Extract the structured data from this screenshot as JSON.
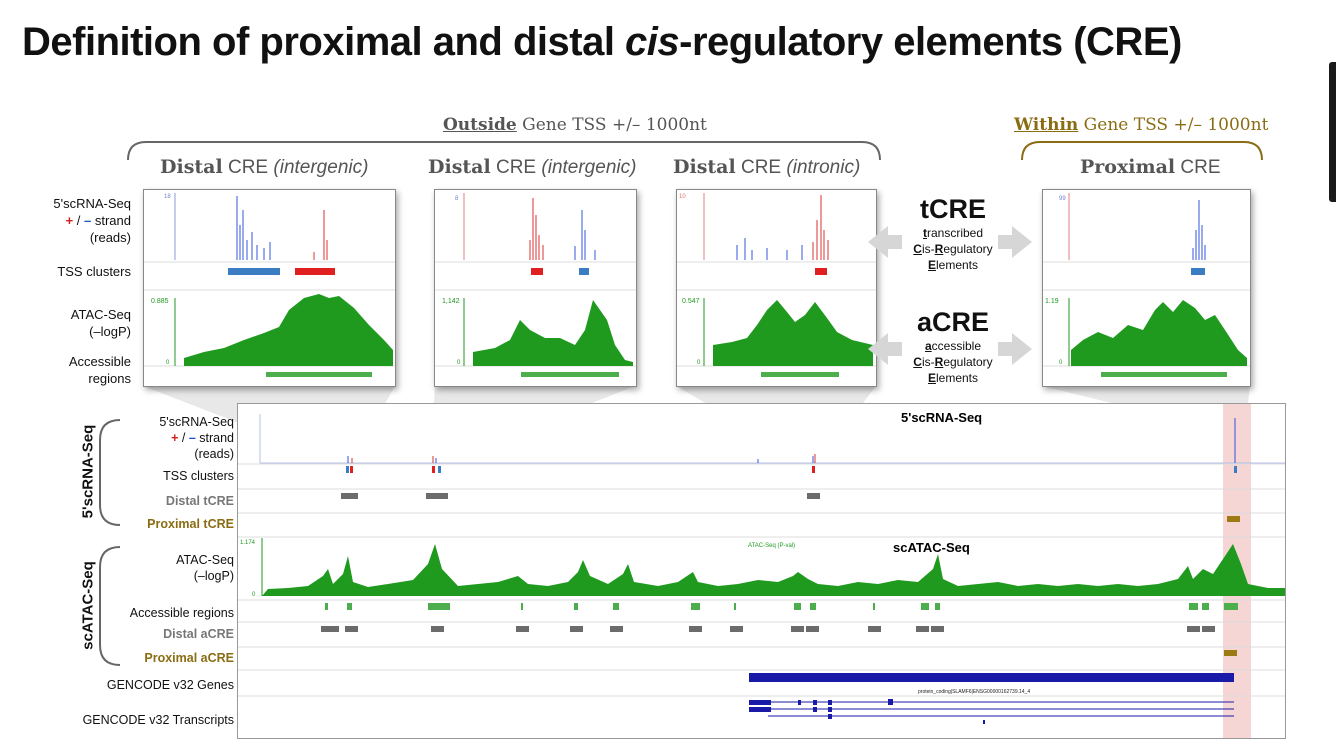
{
  "title": {
    "pre": "Definition of proximal and distal ",
    "italic": "cis",
    "post": "-regulatory elements (CRE)"
  },
  "groups": {
    "outside": {
      "emph": "Outside",
      "rest": " Gene TSS +/– 1000nt"
    },
    "within": {
      "emph": "Within",
      "rest": " Gene TSS +/– 1000nt"
    }
  },
  "cre_labels": [
    {
      "word": "Distal",
      "cre": " CRE ",
      "qual": "(intergenic)"
    },
    {
      "word": "Distal",
      "cre": " CRE ",
      "qual": "(intergenic)"
    },
    {
      "word": "Distal",
      "cre": " CRE ",
      "qual": "(intronic)"
    },
    {
      "word": "Proximal",
      "cre": " CRE",
      "qual": ""
    }
  ],
  "left_labels": {
    "rna1": "5'scRNA-Seq",
    "rna_plus": "+",
    "rna_sep": " / ",
    "rna_minus": "–",
    "rna_strand": " strand",
    "rna3": "(reads)",
    "tss": "TSS clusters",
    "atac1": "ATAC-Seq",
    "atac2": "(–logP)",
    "acc1": "Accessible",
    "acc2": "regions"
  },
  "panel_ymax_rna": [
    "18",
    "8",
    "10",
    "99"
  ],
  "panel_ymax_atac": [
    "0.885",
    "1,142",
    "0.547",
    "1.19"
  ],
  "panel_ymin": "0",
  "tcre": {
    "title": "tCRE",
    "l1": [
      "t",
      "ranscribed"
    ],
    "l2": [
      "C",
      "is-",
      "R",
      "egulatory"
    ],
    "l3": [
      "E",
      "lements"
    ]
  },
  "acre": {
    "title": "aCRE",
    "l1": [
      "a",
      "ccessible"
    ],
    "l2": [
      "C",
      "is-",
      "R",
      "egulatory"
    ],
    "l3": [
      "E",
      "lements"
    ]
  },
  "browser": {
    "side_rna": "5'scRNA-Seq",
    "side_atac": "scATAC-Seq",
    "rna_title": "5'scRNA-Seq",
    "atac_title": "scATAC-Seq",
    "atac_ymax": "1.174",
    "atac_ymin": "0",
    "atac_track_name": "ATAC-Seq (P-val)",
    "tracks": {
      "rna1": "5'scRNA-Seq",
      "rna_plus": "+",
      "rna_sep": " / ",
      "rna_minus": "–",
      "rna_strand": " strand",
      "rna3": "(reads)",
      "tss": "TSS clusters",
      "dtcre": "Distal tCRE",
      "ptcre": "Proximal tCRE",
      "atac1": "ATAC-Seq",
      "atac2": "(–logP)",
      "acc": "Accessible regions",
      "dacre": "Distal aCRE",
      "pacre": "Proximal aCRE",
      "genes": "GENCODE v32 Genes",
      "transcripts": "GENCODE v32 Transcripts"
    },
    "gene_label": "protein_coding|SLAMF6|ENSG00000162739.14_4"
  },
  "colors": {
    "plus": "#d62020",
    "minus": "#2a5bd6",
    "atac": "#1f9a1f",
    "acc": "#4cae4c",
    "grey": "#6b6b6b",
    "gold": "#9c7c12",
    "gene": "#1a1aa8",
    "highlight": "#f6d5d5"
  }
}
